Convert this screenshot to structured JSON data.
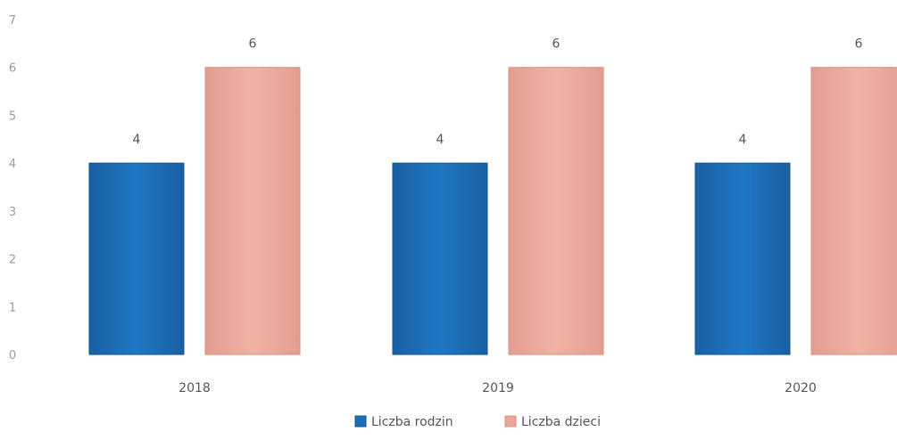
{
  "chart_data": {
    "type": "bar",
    "title": "",
    "xlabel": "",
    "ylabel": "",
    "categories": [
      "2018",
      "2019",
      "2020"
    ],
    "series": [
      {
        "name": "Liczba rodzin",
        "values": [
          4,
          4,
          4
        ],
        "color": "#1b6fb5"
      },
      {
        "name": "Liczba dzieci",
        "values": [
          6,
          6,
          6
        ],
        "color": "#e8a79a"
      }
    ],
    "ylim": [
      0,
      7
    ],
    "yticks": [
      "0",
      "1",
      "2",
      "3",
      "4",
      "5",
      "6",
      "7"
    ],
    "grid": false,
    "legend_position": "bottom-center",
    "data_labels": true
  }
}
